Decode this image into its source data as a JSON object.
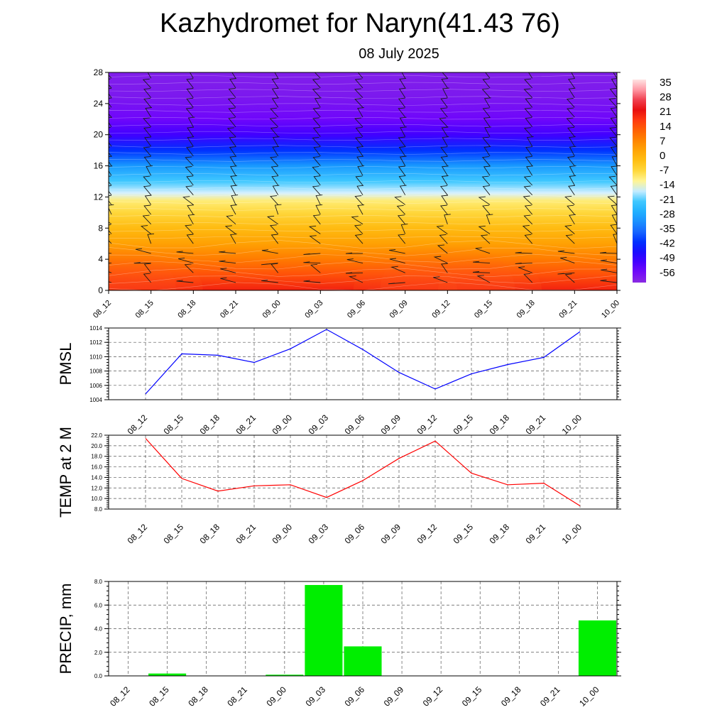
{
  "title": "Kazhydromet for Naryn(41.43 76)",
  "subtitle": "08 July 2025",
  "time_labels": [
    "08_12",
    "08_15",
    "08_18",
    "08_21",
    "09_00",
    "09_03",
    "09_06",
    "09_09",
    "09_12",
    "09_15",
    "09_18",
    "09_21",
    "10_00"
  ],
  "chart_data": [
    {
      "type": "heatmap",
      "title": "",
      "ylabel": "",
      "ylim": [
        0,
        28
      ],
      "yticks": [
        "0",
        "4",
        "8",
        "12",
        "16",
        "20",
        "24",
        "28"
      ],
      "colorbar_ticks": [
        "35",
        "28",
        "21",
        "14",
        "7",
        "0",
        "-7",
        "-14",
        "-21",
        "-28",
        "-35",
        "-42",
        "-49",
        "-56"
      ],
      "colorbar_range": [
        -63,
        42
      ],
      "temperature_profile": [
        {
          "h": 0,
          "t": 24
        },
        {
          "h": 2,
          "t": 18
        },
        {
          "h": 4,
          "t": 12
        },
        {
          "h": 6,
          "t": 6
        },
        {
          "h": 8,
          "t": 1
        },
        {
          "h": 10,
          "t": -5
        },
        {
          "h": 11.5,
          "t": -9
        },
        {
          "h": 12.5,
          "t": -15
        },
        {
          "h": 14,
          "t": -21
        },
        {
          "h": 16,
          "t": -30
        },
        {
          "h": 18,
          "t": -42
        },
        {
          "h": 20,
          "t": -52
        },
        {
          "h": 22,
          "t": -57
        },
        {
          "h": 25,
          "t": -60
        },
        {
          "h": 28,
          "t": -61
        }
      ],
      "warm_anomaly": [
        5,
        3,
        1,
        0,
        -1,
        -1,
        0,
        3,
        5,
        3,
        1,
        0,
        -1
      ]
    },
    {
      "type": "line",
      "ylabel": "PMSL",
      "ylim": [
        1004,
        1014
      ],
      "yticks": [
        "1004",
        "1006",
        "1008",
        "1010",
        "1012",
        "1014"
      ],
      "series": [
        {
          "color": "#0000ff",
          "values": [
            1004.8,
            1010.4,
            1010.2,
            1009.2,
            1011.1,
            1013.8,
            1011.0,
            1007.8,
            1005.5,
            1007.6,
            1008.9,
            1009.9,
            1013.5
          ]
        }
      ]
    },
    {
      "type": "line",
      "ylabel": "TEMP at 2 M",
      "ylim": [
        8,
        22
      ],
      "yticks": [
        "8.0",
        "10.0",
        "12.0",
        "14.0",
        "16.0",
        "18.0",
        "20.0",
        "22.0"
      ],
      "series": [
        {
          "color": "#ff0000",
          "values": [
            21.4,
            13.8,
            11.4,
            12.4,
            12.6,
            10.2,
            13.4,
            17.6,
            20.9,
            14.8,
            12.6,
            12.9,
            8.6
          ]
        }
      ]
    },
    {
      "type": "bar",
      "ylabel": "PRECIP, mm",
      "ylim": [
        0,
        8
      ],
      "yticks": [
        "0.0",
        "2.0",
        "4.0",
        "6.0",
        "8.0"
      ],
      "bar_color": "#00ee00",
      "values": [
        0,
        0.2,
        0,
        0,
        0.1,
        7.7,
        2.5,
        0,
        0,
        0,
        0,
        0,
        4.7
      ]
    }
  ]
}
